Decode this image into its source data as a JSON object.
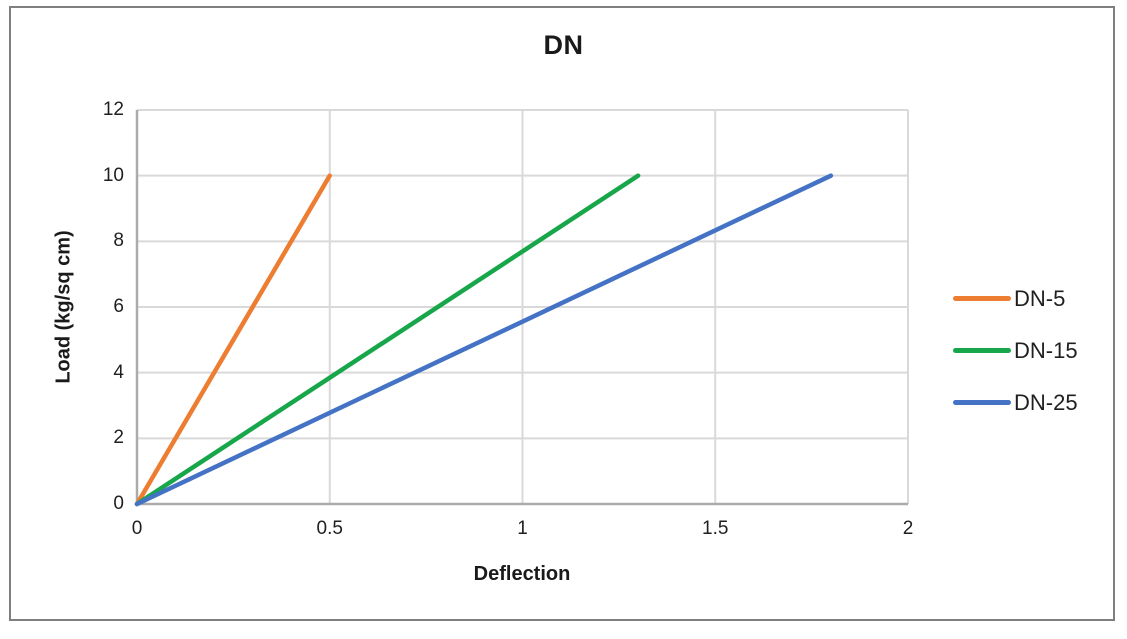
{
  "chart_data": {
    "type": "line",
    "title": "DN",
    "xlabel": "Deflection",
    "ylabel": "Load (kg/sq cm)",
    "xlim": [
      0,
      2
    ],
    "ylim": [
      0,
      12
    ],
    "xticks": [
      0,
      0.5,
      1,
      1.5,
      2
    ],
    "xtick_labels": [
      "0",
      "0.5",
      "1",
      "1.5",
      "2"
    ],
    "yticks": [
      0,
      2,
      4,
      6,
      8,
      10,
      12
    ],
    "ytick_labels": [
      "0",
      "2",
      "4",
      "6",
      "8",
      "10",
      "12"
    ],
    "grid": true,
    "legend_position": "right",
    "series": [
      {
        "name": "DN-5",
        "color": "#ED7D31",
        "points": [
          [
            0,
            0
          ],
          [
            0.5,
            10
          ]
        ]
      },
      {
        "name": "DN-15",
        "color": "#18A64B",
        "points": [
          [
            0,
            0
          ],
          [
            1.3,
            10
          ]
        ]
      },
      {
        "name": "DN-25",
        "color": "#4472C4",
        "points": [
          [
            0,
            0
          ],
          [
            1.8,
            10
          ]
        ]
      }
    ],
    "colors": {
      "gridline": "#D9D9D9",
      "axis_line": "#ABABAB",
      "text": "#1F1F1F",
      "chart_border": "#7F7F7F",
      "background": "#FFFFFF"
    }
  }
}
